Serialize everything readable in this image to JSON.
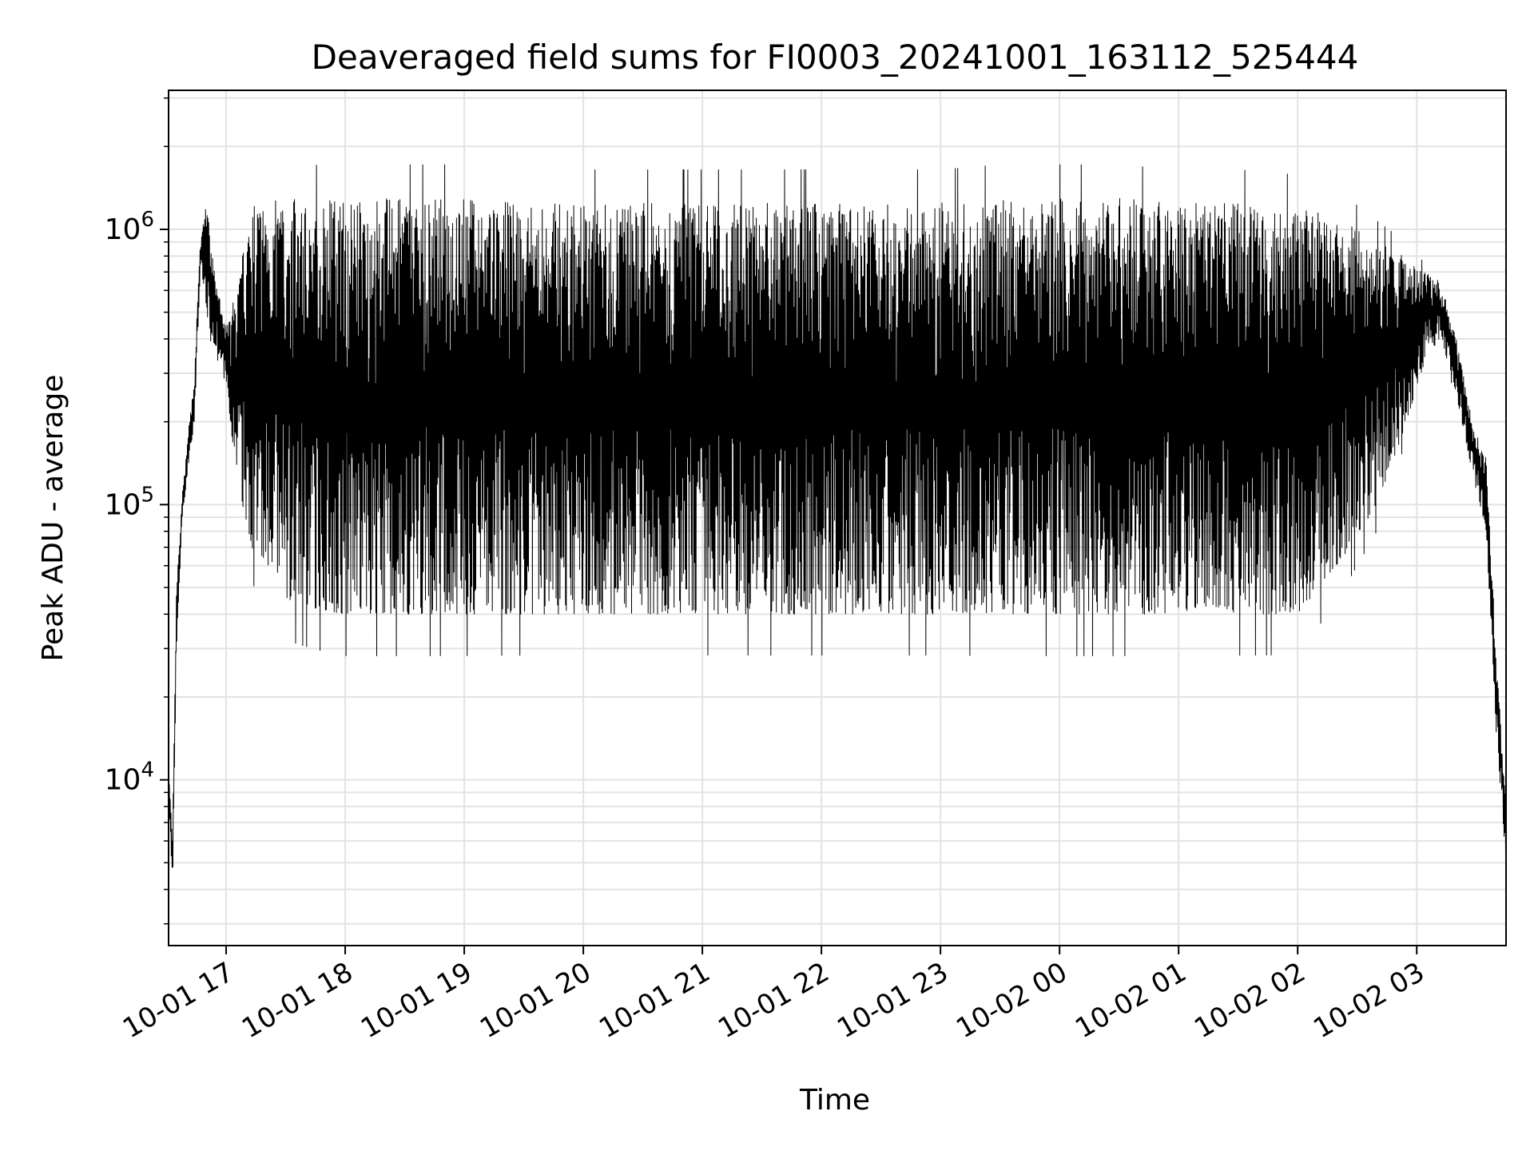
{
  "chart_data": {
    "type": "line",
    "title": "Deaveraged field sums for FI0003_20241001_163112_525444",
    "xlabel": "Time",
    "ylabel": "Peak ADU - average",
    "yscale": "log",
    "ylim": [
      2500,
      3200000
    ],
    "xlim": [
      "2024-10-01 16:31",
      "2024-10-02 03:45"
    ],
    "grid": true,
    "line_color": "#000000",
    "x_ticks": [
      {
        "value": "2024-10-01 17:00",
        "label": "10-01 17"
      },
      {
        "value": "2024-10-01 18:00",
        "label": "10-01 18"
      },
      {
        "value": "2024-10-01 19:00",
        "label": "10-01 19"
      },
      {
        "value": "2024-10-01 20:00",
        "label": "10-01 20"
      },
      {
        "value": "2024-10-01 21:00",
        "label": "10-01 21"
      },
      {
        "value": "2024-10-01 22:00",
        "label": "10-01 22"
      },
      {
        "value": "2024-10-01 23:00",
        "label": "10-01 23"
      },
      {
        "value": "2024-10-02 00:00",
        "label": "10-02 00"
      },
      {
        "value": "2024-10-02 01:00",
        "label": "10-02 01"
      },
      {
        "value": "2024-10-02 02:00",
        "label": "10-02 02"
      },
      {
        "value": "2024-10-02 03:00",
        "label": "10-02 03"
      }
    ],
    "y_ticks": [
      {
        "value": 10000,
        "base": "10",
        "exp": "4"
      },
      {
        "value": 100000,
        "base": "10",
        "exp": "5"
      },
      {
        "value": 1000000,
        "base": "10",
        "exp": "6"
      }
    ],
    "series": [
      {
        "x": [
          "2024-10-01 16:31",
          "2024-10-01 16:33",
          "2024-10-01 16:35",
          "2024-10-01 16:38",
          "2024-10-01 16:41",
          "2024-10-01 16:44",
          "2024-10-01 16:47",
          "2024-10-01 16:50",
          "2024-10-01 16:53",
          "2024-10-01 16:56",
          "2024-10-01 16:58",
          "2024-10-01 17:00",
          "2024-10-01 17:04",
          "2024-10-01 17:08",
          "2024-10-01 17:13",
          "2024-10-01 17:20",
          "2024-10-01 17:30",
          "2024-10-01 17:45",
          "2024-10-01 18:00",
          "2024-10-01 18:30",
          "2024-10-01 19:00",
          "2024-10-01 19:30",
          "2024-10-01 20:00",
          "2024-10-01 20:30",
          "2024-10-01 21:00",
          "2024-10-01 21:30",
          "2024-10-01 22:00",
          "2024-10-01 22:30",
          "2024-10-01 23:00",
          "2024-10-01 23:30",
          "2024-10-02 00:00",
          "2024-10-02 00:30",
          "2024-10-02 01:00",
          "2024-10-02 01:30",
          "2024-10-02 02:00",
          "2024-10-02 02:20",
          "2024-10-02 02:40",
          "2024-10-02 02:55",
          "2024-10-02 03:05",
          "2024-10-02 03:12",
          "2024-10-02 03:20",
          "2024-10-02 03:28",
          "2024-10-02 03:35",
          "2024-10-02 03:40",
          "2024-10-02 03:45"
        ],
        "upper": [
          11000,
          6000,
          50000,
          110000,
          180000,
          300000,
          900000,
          1300000,
          800000,
          600000,
          500000,
          450000,
          500000,
          800000,
          1200000,
          1300000,
          1300000,
          1300000,
          1300000,
          1300000,
          1300000,
          1250000,
          1250000,
          1250000,
          1250000,
          1250000,
          1250000,
          1250000,
          1250000,
          1300000,
          1300000,
          1300000,
          1250000,
          1250000,
          1200000,
          1100000,
          900000,
          800000,
          700000,
          650000,
          400000,
          200000,
          150000,
          30000,
          8000
        ],
        "lower": [
          9000,
          4000,
          30000,
          90000,
          140000,
          200000,
          700000,
          500000,
          400000,
          350000,
          300000,
          250000,
          150000,
          100000,
          70000,
          55000,
          45000,
          42000,
          40000,
          40000,
          40000,
          40000,
          40000,
          40000,
          40000,
          40000,
          40000,
          40000,
          40000,
          40000,
          40000,
          40000,
          40000,
          40000,
          40000,
          60000,
          100000,
          200000,
          350000,
          400000,
          250000,
          130000,
          80000,
          15000,
          5000
        ]
      }
    ]
  }
}
